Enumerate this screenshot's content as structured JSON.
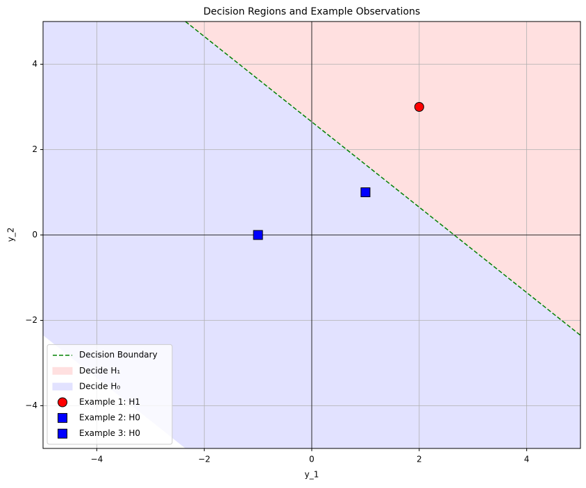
{
  "chart_data": {
    "type": "scatter",
    "title": "Decision Regions and Example Observations",
    "xlabel": "y_1",
    "ylabel": "y_2",
    "xlim": [
      -5,
      5
    ],
    "ylim": [
      -5,
      5
    ],
    "xticks": [
      {
        "value": -4,
        "label": "−4"
      },
      {
        "value": -2,
        "label": "−2"
      },
      0,
      2,
      4
    ],
    "yticks": [
      {
        "value": -4,
        "label": "−4"
      },
      {
        "value": -2,
        "label": "−2"
      },
      0,
      2,
      4
    ],
    "grid": true,
    "legend": "lower left",
    "series": [
      {
        "name": "Decision Boundary",
        "kind": "line",
        "color": "green",
        "dashed": true,
        "x": [
          -2.35,
          5
        ],
        "values": [
          5,
          -2.35
        ]
      },
      {
        "name": "Decide H₁",
        "kind": "area",
        "color": "#ffe0e0",
        "x": [
          -2.35,
          5,
          5
        ],
        "values": [
          5,
          5,
          -2.35
        ]
      },
      {
        "name": "Decide H₀",
        "kind": "area",
        "color": "#e2e2ff",
        "x": [
          -5,
          -2.35,
          5,
          5,
          -2.35,
          -5
        ],
        "values": [
          5,
          5,
          -2.35,
          -5,
          -5,
          -2.35
        ]
      },
      {
        "name": "Example 1: H1",
        "kind": "point",
        "marker": "circle",
        "color": "red",
        "x": [
          2
        ],
        "values": [
          3
        ]
      },
      {
        "name": "Example 2: H0",
        "kind": "point",
        "marker": "square",
        "color": "blue",
        "x": [
          1
        ],
        "values": [
          1
        ]
      },
      {
        "name": "Example 3: H0",
        "kind": "point",
        "marker": "square",
        "color": "blue",
        "x": [
          -1
        ],
        "values": [
          0
        ]
      }
    ]
  }
}
